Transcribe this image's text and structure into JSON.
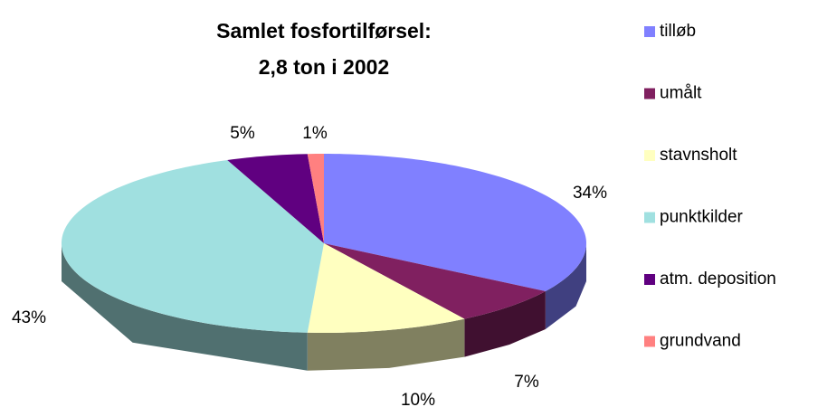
{
  "chart_data": {
    "type": "pie3d",
    "title": [
      "Samlet fosfortilførsel:",
      "2,8 ton i 2002"
    ],
    "categories": [
      "tilløb",
      "umålt",
      "stavnsholt",
      "punktkilder",
      "atm. deposition",
      "grundvand"
    ],
    "values": [
      34,
      7,
      10,
      43,
      5,
      1
    ],
    "value_labels": [
      "34%",
      "7%",
      "10%",
      "43%",
      "5%",
      "1%"
    ],
    "colors": [
      "#8080ff",
      "#802060",
      "#ffffc0",
      "#a0e0e0",
      "#600080",
      "#ff8080"
    ],
    "legend": "right"
  }
}
